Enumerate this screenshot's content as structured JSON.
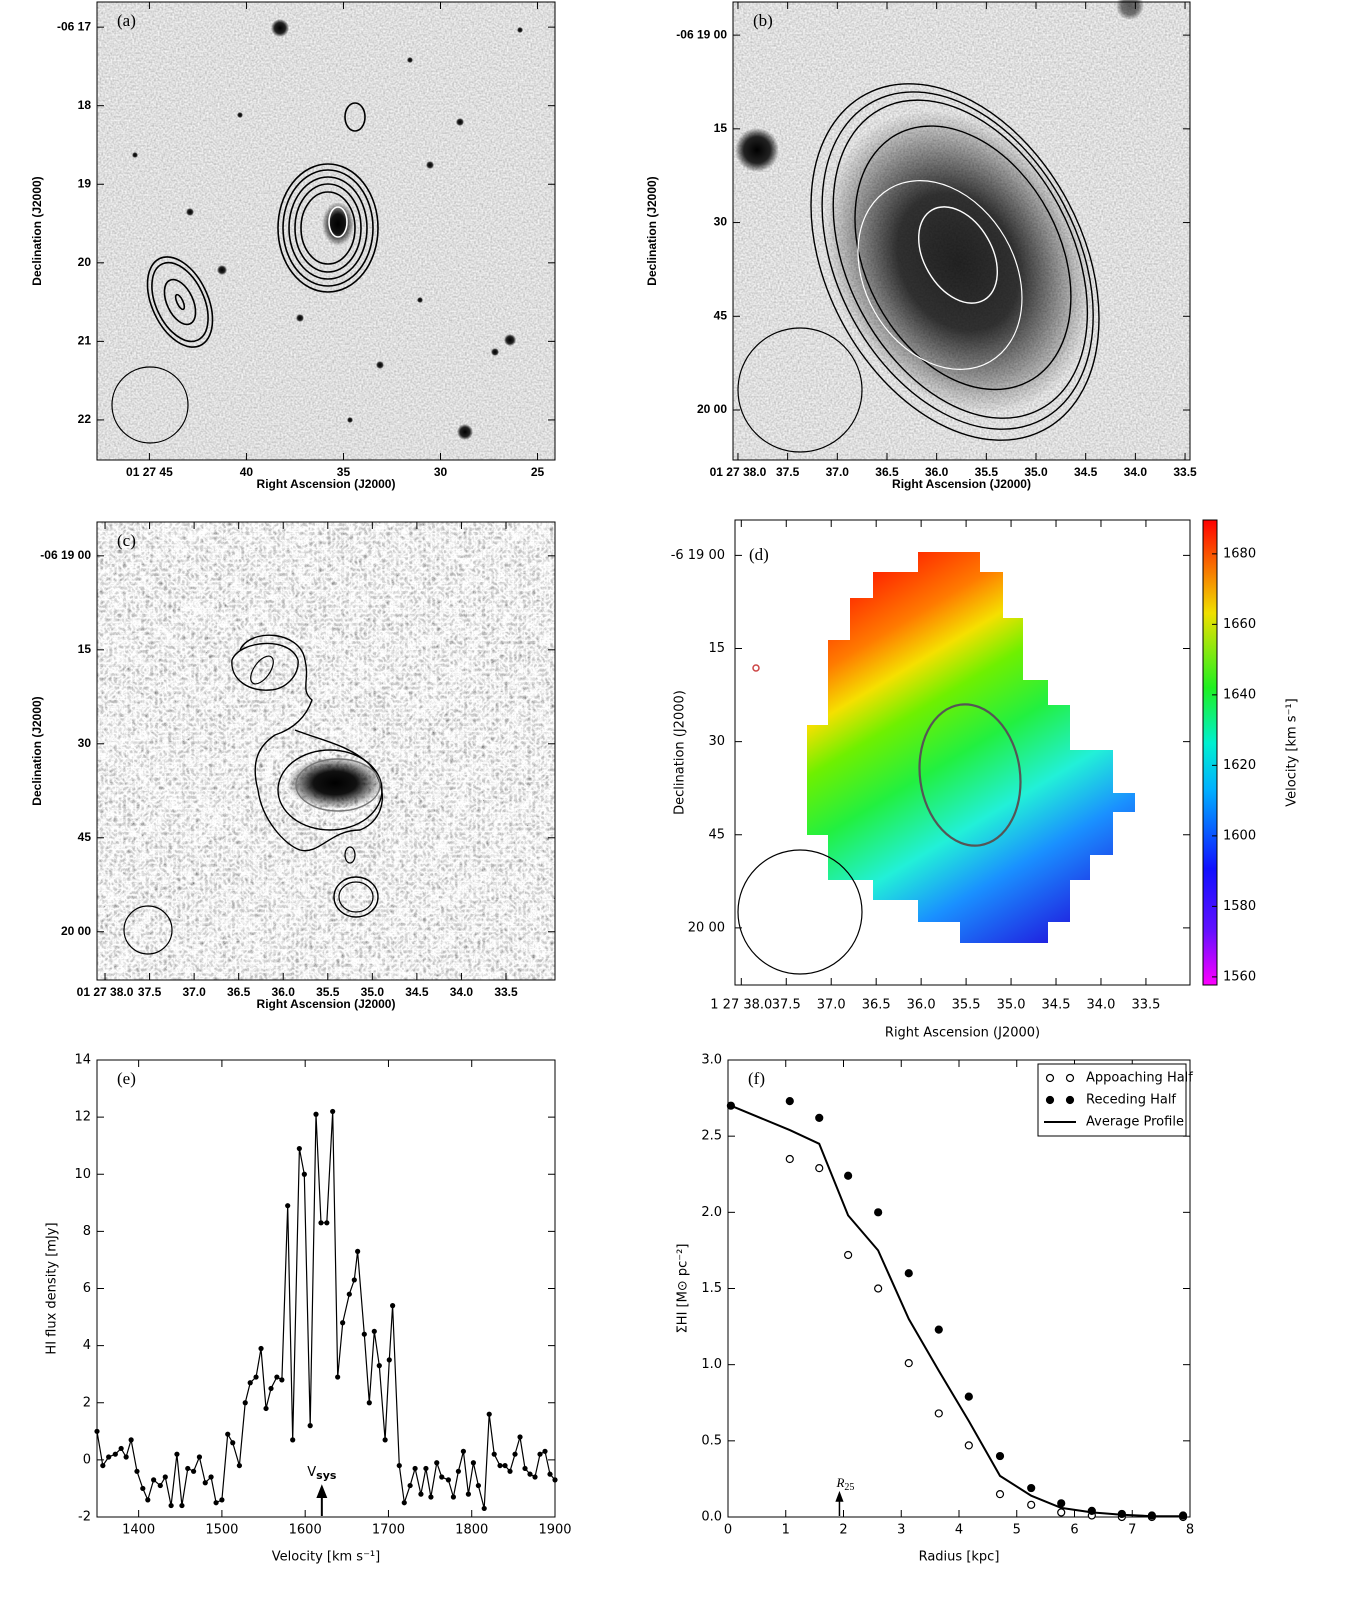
{
  "chart_data": [
    {
      "type": "image",
      "panel": "(a)",
      "xlabel": "Right Ascension (J2000)",
      "ylabel": "Declination (J2000)",
      "xlim": [
        47.7,
        24.1
      ],
      "ylim": [
        22.51,
        16.68
      ],
      "xticks": [
        {
          "value": 45,
          "label": "01 27 45"
        },
        40,
        35,
        30,
        25
      ],
      "yticks": [
        {
          "value": 17,
          "label": "-06 17"
        },
        18,
        19,
        20,
        21,
        22
      ]
    },
    {
      "type": "image",
      "panel": "(b)",
      "xlabel": "Right Ascension (J2000)",
      "ylabel": "Declination (J2000)",
      "xlim": [
        38.05,
        33.45
      ],
      "ylim": [
        68,
        -5.3
      ],
      "xticks": [
        {
          "value": 38,
          "label": "01 27 38.0"
        },
        37.5,
        {
          "value": 37,
          "label": "37.0"
        },
        36.5,
        {
          "value": 36,
          "label": "36.0"
        },
        35.5,
        {
          "value": 35,
          "label": "35.0"
        },
        34.5,
        {
          "value": 34,
          "label": "34.0"
        },
        33.5
      ],
      "yticks": [
        {
          "value": 0,
          "label": "-06 19 00"
        },
        15,
        30,
        45,
        {
          "value": 60,
          "label": "20 00"
        }
      ]
    },
    {
      "type": "image",
      "panel": "(c)",
      "xlabel": "Right Ascension (J2000)",
      "ylabel": "Declination (J2000)",
      "xlim": [
        38.09,
        32.95
      ],
      "ylim": [
        67.7,
        -5.4
      ],
      "xticks": [
        {
          "value": 38,
          "label": "01 27 38.0"
        },
        37.5,
        {
          "value": 37,
          "label": "37.0"
        },
        36.5,
        {
          "value": 36,
          "label": "36.0"
        },
        35.5,
        {
          "value": 35,
          "label": "35.0"
        },
        34.5,
        {
          "value": 34,
          "label": "34.0"
        },
        33.5
      ],
      "yticks": [
        {
          "value": 0,
          "label": "-06 19 00"
        },
        15,
        30,
        45,
        {
          "value": 60,
          "label": "20 00"
        }
      ]
    },
    {
      "type": "image",
      "panel": "(d)",
      "xlabel": "Right Ascension (J2000)",
      "ylabel": "Declination (J2000)",
      "xlim": [
        38.07,
        33.01
      ],
      "ylim": [
        69.2,
        -5.7
      ],
      "xticks": [
        {
          "value": 38,
          "label": "1 27 38.0"
        },
        37.5,
        {
          "value": 37,
          "label": "37.0"
        },
        36.5,
        {
          "value": 36,
          "label": "36.0"
        },
        35.5,
        {
          "value": 35,
          "label": "35.0"
        },
        34.5,
        {
          "value": 34,
          "label": "34.0"
        },
        33.5
      ],
      "yticks": [
        {
          "value": 0,
          "label": "-6 19 00"
        },
        15,
        30,
        45,
        {
          "value": 60,
          "label": "20 00"
        }
      ],
      "colorbar": {
        "label": "Velocity [km s⁻¹]",
        "clim": [
          1557.7,
          1689.6
        ],
        "ticks": [
          1560,
          1580,
          1600,
          1620,
          1640,
          1660,
          1680
        ]
      }
    },
    {
      "type": "line",
      "panel": "(e)",
      "xlabel": "Velocity [km s⁻¹]",
      "ylabel": "HI flux density [mJy]",
      "color": "#000000",
      "xlim": [
        1350,
        1900
      ],
      "ylim": [
        -2,
        14
      ],
      "xticks": [
        1400,
        1500,
        1600,
        1700,
        1800,
        1900
      ],
      "yticks": [
        -2,
        0,
        2,
        4,
        6,
        8,
        10,
        12,
        14
      ],
      "annotation": {
        "text": "V",
        "subscript": "sys",
        "x": 1620
      },
      "x": [
        1350,
        1357,
        1364,
        1372,
        1379,
        1385,
        1391,
        1398,
        1405,
        1411,
        1418,
        1426,
        1432,
        1439,
        1446,
        1452,
        1459,
        1466,
        1473,
        1480,
        1487,
        1493,
        1500,
        1507,
        1513,
        1521,
        1528,
        1534,
        1541,
        1547,
        1553,
        1559,
        1566,
        1572,
        1579,
        1585,
        1593,
        1599,
        1606,
        1613,
        1619,
        1626,
        1633,
        1639,
        1645,
        1653,
        1659,
        1663,
        1671,
        1677,
        1683,
        1689,
        1696,
        1701,
        1705,
        1713,
        1719,
        1726,
        1732,
        1739,
        1745,
        1751,
        1758,
        1764,
        1772,
        1778,
        1784,
        1790,
        1796,
        1802,
        1808,
        1815,
        1821,
        1827,
        1834,
        1840,
        1846,
        1852,
        1858,
        1864,
        1870,
        1876,
        1882,
        1888,
        1894,
        1900
      ],
      "values": [
        1.0,
        -0.2,
        0.1,
        0.2,
        0.4,
        0.1,
        0.7,
        -0.4,
        -1.0,
        -1.4,
        -0.7,
        -0.9,
        -0.6,
        -1.6,
        0.2,
        -1.6,
        -0.3,
        -0.4,
        0.1,
        -0.8,
        -0.6,
        -1.5,
        -1.4,
        0.9,
        0.6,
        -0.2,
        2.0,
        2.7,
        2.9,
        3.9,
        1.8,
        2.5,
        2.9,
        2.8,
        8.9,
        0.7,
        10.9,
        10.0,
        1.2,
        12.1,
        8.3,
        8.3,
        12.2,
        2.9,
        4.8,
        5.8,
        6.3,
        7.3,
        4.4,
        2.0,
        4.5,
        3.3,
        0.7,
        3.5,
        5.4,
        -0.2,
        -1.5,
        -0.9,
        -0.3,
        -1.2,
        -0.3,
        -1.3,
        -0.1,
        -0.6,
        -0.7,
        -1.3,
        -0.4,
        0.3,
        -1.2,
        -0.1,
        -0.9,
        -1.7,
        1.6,
        0.2,
        -0.2,
        -0.2,
        -0.4,
        0.2,
        0.8,
        -0.3,
        -0.5,
        -0.6,
        0.2,
        0.3,
        -0.5,
        -0.7
      ]
    },
    {
      "type": "scatter",
      "panel": "(f)",
      "xlabel": "Radius [kpc]",
      "ylabel": "ΣHI  [M⊙ pc⁻²]",
      "xlim": [
        0,
        8
      ],
      "ylim": [
        0,
        3
      ],
      "xticks": [
        0,
        1,
        2,
        3,
        4,
        5,
        6,
        7,
        8
      ],
      "yticks": [
        {
          "value": 0,
          "label": "0.0"
        },
        0.5,
        {
          "value": 1,
          "label": "1.0"
        },
        1.5,
        {
          "value": 2,
          "label": "2.0"
        },
        2.5,
        {
          "value": 3,
          "label": "3.0"
        }
      ],
      "legend": "upper right",
      "annotation": {
        "text": "R",
        "subscript": "25",
        "x": 1.93
      },
      "series": [
        {
          "name": "Appoaching Half",
          "marker": "open",
          "color": "#000000",
          "x": [
            1.07,
            1.58,
            2.08,
            2.6,
            3.13,
            3.65,
            4.17,
            4.71,
            5.25,
            5.77,
            6.3,
            6.82,
            7.34,
            7.88
          ],
          "values": [
            2.35,
            2.29,
            1.72,
            1.5,
            1.01,
            0.68,
            0.47,
            0.15,
            0.08,
            0.03,
            0.01,
            0.0,
            0.0,
            0.0
          ]
        },
        {
          "name": "Receding Half",
          "marker": "filled",
          "color": "#000000",
          "x": [
            0.05,
            1.07,
            1.58,
            2.08,
            2.6,
            3.13,
            3.65,
            4.17,
            4.71,
            5.25,
            5.77,
            6.3,
            6.82,
            7.34,
            7.88
          ],
          "values": [
            2.7,
            2.73,
            2.62,
            2.24,
            2.0,
            1.6,
            1.23,
            0.79,
            0.4,
            0.19,
            0.09,
            0.04,
            0.02,
            0.01,
            0.01
          ]
        },
        {
          "name": "Average Profile",
          "marker": "line",
          "color": "#000000",
          "x": [
            0.05,
            1.07,
            1.58,
            2.08,
            2.6,
            3.13,
            3.65,
            4.17,
            4.71,
            5.25,
            5.77,
            6.3,
            6.82,
            7.34,
            7.88
          ],
          "values": [
            2.7,
            2.54,
            2.45,
            1.98,
            1.75,
            1.3,
            0.96,
            0.63,
            0.27,
            0.14,
            0.06,
            0.03,
            0.015,
            0.005,
            0.005
          ]
        }
      ]
    }
  ]
}
